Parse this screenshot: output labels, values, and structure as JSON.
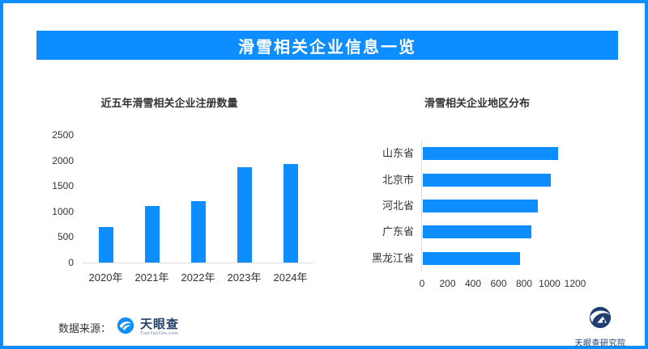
{
  "header": {
    "title": "滑雪相关企业信息一览"
  },
  "colors": {
    "accent": "#0E8DFF",
    "axis_line": "#DDDDDD",
    "text": "#333333",
    "brand_navy": "#25406B",
    "institute_navy": "#1F3E70"
  },
  "footer": {
    "source_label": "数据来源：",
    "tyc_name": "天眼查",
    "tyc_domain": "TianYanCha.com",
    "institute": "天眼查研究院"
  },
  "chart_data": [
    {
      "type": "bar",
      "title": "近五年滑雪相关企业注册数量",
      "categories": [
        "2020年",
        "2021年",
        "2022年",
        "2023年",
        "2024年"
      ],
      "values": [
        700,
        1100,
        1200,
        1860,
        1930
      ],
      "ylim": [
        0,
        2500
      ],
      "yticks": [
        0,
        500,
        1000,
        1500,
        2000,
        2500
      ],
      "xlabel": "",
      "ylabel": "",
      "grid": false,
      "legend": "none",
      "bar_color": "#0E8DFF"
    },
    {
      "type": "bar-horizontal",
      "title": "滑雪相关企业地区分布",
      "categories": [
        "山东省",
        "北京市",
        "河北省",
        "广东省",
        "黑龙江省"
      ],
      "values": [
        1060,
        1000,
        900,
        850,
        760
      ],
      "xlim": [
        0,
        1200
      ],
      "xticks": [
        0,
        200,
        400,
        600,
        800,
        1000,
        1200
      ],
      "xlabel": "",
      "ylabel": "",
      "grid": false,
      "legend": "none",
      "bar_color": "#0E8DFF"
    }
  ]
}
